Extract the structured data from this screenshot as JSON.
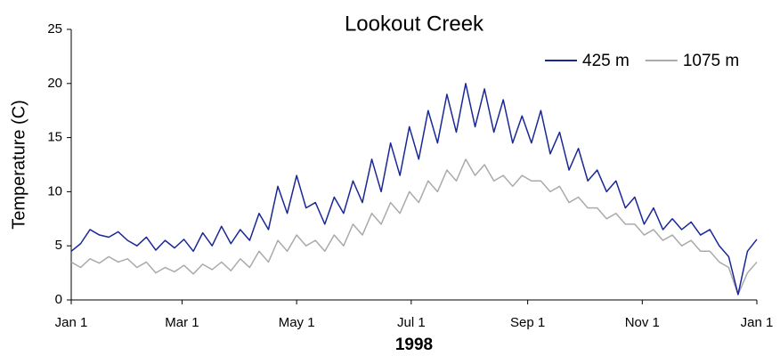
{
  "chart_data": {
    "type": "line",
    "title": "Lookout Creek",
    "x_label": "1998",
    "y_label": "Temperature (C)",
    "x": [
      0,
      5,
      10,
      15,
      20,
      25,
      30,
      35,
      40,
      45,
      50,
      55,
      60,
      65,
      70,
      75,
      80,
      85,
      90,
      95,
      100,
      105,
      110,
      115,
      120,
      125,
      130,
      135,
      140,
      145,
      150,
      155,
      160,
      165,
      170,
      175,
      180,
      185,
      190,
      195,
      200,
      205,
      210,
      215,
      220,
      225,
      230,
      235,
      240,
      245,
      250,
      255,
      260,
      265,
      270,
      275,
      280,
      285,
      290,
      295,
      300,
      305,
      310,
      315,
      320,
      325,
      330,
      335,
      340,
      345,
      350,
      355,
      360,
      365
    ],
    "series": [
      {
        "name": "425 m",
        "color": "#1a2896",
        "values": [
          4.5,
          5.2,
          6.5,
          6.0,
          5.8,
          6.3,
          5.5,
          5.0,
          5.8,
          4.6,
          5.5,
          4.8,
          5.6,
          4.5,
          6.2,
          5.0,
          6.8,
          5.2,
          6.5,
          5.5,
          8.0,
          6.5,
          10.5,
          8.0,
          11.5,
          8.5,
          9.0,
          7.0,
          9.5,
          8.0,
          11.0,
          9.0,
          13.0,
          10.0,
          14.5,
          11.5,
          16.0,
          13.0,
          17.5,
          14.5,
          19.0,
          15.5,
          20.0,
          16.0,
          19.5,
          15.5,
          18.5,
          14.5,
          17.0,
          14.5,
          17.5,
          13.5,
          15.5,
          12.0,
          14.0,
          11.0,
          12.0,
          10.0,
          11.0,
          8.5,
          9.5,
          7.0,
          8.5,
          6.5,
          7.5,
          6.5,
          7.2,
          6.0,
          6.5,
          5.0,
          4.0,
          0.5,
          4.5,
          5.6
        ]
      },
      {
        "name": "1075 m",
        "color": "#aaaaaa",
        "values": [
          3.5,
          3.0,
          3.8,
          3.4,
          4.0,
          3.5,
          3.8,
          3.0,
          3.5,
          2.5,
          3.0,
          2.6,
          3.2,
          2.4,
          3.3,
          2.8,
          3.5,
          2.7,
          3.8,
          3.0,
          4.5,
          3.5,
          5.5,
          4.5,
          6.0,
          5.0,
          5.5,
          4.5,
          6.0,
          5.0,
          7.0,
          6.0,
          8.0,
          7.0,
          9.0,
          8.0,
          10.0,
          9.0,
          11.0,
          10.0,
          12.0,
          11.0,
          13.0,
          11.5,
          12.5,
          11.0,
          11.5,
          10.5,
          11.5,
          11.0,
          11.0,
          10.0,
          10.5,
          9.0,
          9.5,
          8.5,
          8.5,
          7.5,
          8.0,
          7.0,
          7.0,
          6.0,
          6.5,
          5.5,
          6.0,
          5.0,
          5.5,
          4.5,
          4.5,
          3.5,
          3.0,
          0.5,
          2.5,
          3.5
        ]
      }
    ],
    "xlim": [
      0,
      365
    ],
    "xticks": [
      {
        "value": 0,
        "label": "Jan 1"
      },
      {
        "value": 59,
        "label": "Mar 1"
      },
      {
        "value": 120,
        "label": "May 1"
      },
      {
        "value": 181,
        "label": "Jul 1"
      },
      {
        "value": 243,
        "label": "Sep 1"
      },
      {
        "value": 304,
        "label": "Nov 1"
      },
      {
        "value": 365,
        "label": "Jan 1"
      }
    ],
    "ylim": [
      0,
      25
    ],
    "yticks": [
      0,
      5,
      10,
      15,
      20,
      25
    ],
    "grid": false,
    "legend": "top-right"
  }
}
